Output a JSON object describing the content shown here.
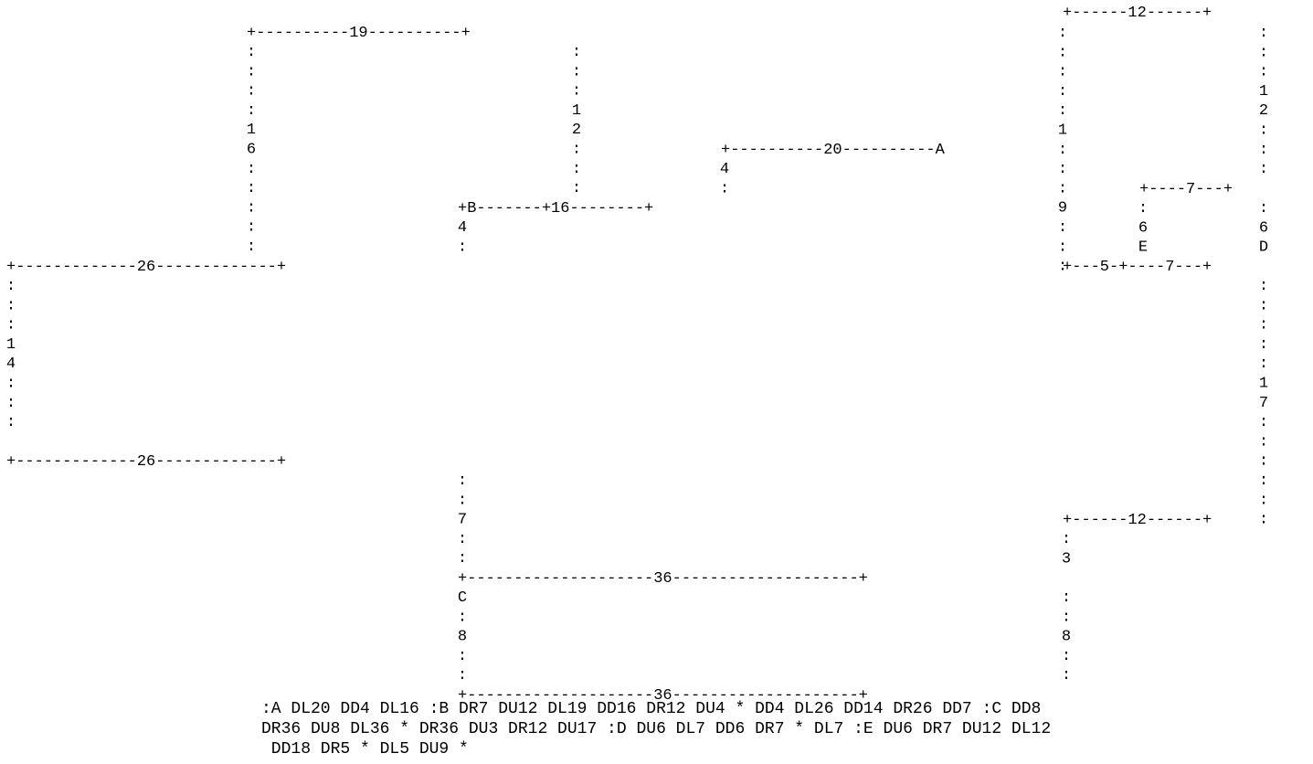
{
  "diagram": {
    "lines": [
      "                                                                                                                                               +------12------+",
      "                           +----------19----------+                                                                                            :              :",
      "                           :                      :                                                                                            :              :",
      "                           :                      :                                                                                            :              :",
      "                           :                      :                                                                                            :              1",
      "                           :                      1                                                                                            :              2",
      "                           1                      2                                                                                            1              :",
      "                           6                      :                   +----------20----------A:                                                :              :",
      "                           :                      :                   4                                                                        :              :",
      "                           :                      :                   :                                                                        :     +----7---+",
      "                           :                     +B-------+16--------+                                                                        9     :        :",
      "                           :                     4                                                                                            :     6        6",
      "                           :                     :                                                                                            :     E        D",
      "+-------------26-------------+                                                                                                                  +---5-+----7---+",
      ":                                                                                                                                                             :",
      ":                                                                                                                                                             :",
      ":                                                                                                                                                             :",
      "1                                                                                                                                                             :",
      "4                                                                                                                                                             1",
      ":                                                                                                                                                             7",
      ":                                                                                                                                                             :",
      ":                                                                                                                                                             :",
      "+-------------26-------------+                                                                                                                                :",
      "                           :                                                                                                                                  :",
      "                           :                                                                                                                                  :",
      "                           7                                                                                                          +------12------+",
      "                           :                                                                                                          :",
      "                           :                                                                                                          3",
      "                          +--------------------36--------------------+",
      "                          C                                          :",
      "                          :                                          :",
      "                          8                                          8",
      "                          :                                          :",
      "                          :                                          :",
      "                          +--------------------36--------------------+"
    ]
  },
  "instructions": {
    "lines": [
      ":A DL20 DD4 DL16 :B DR7 DU12 DL19 DD16 DR12 DU4 * DD4 DL26 DD14 DR26 DD7 :C DD8",
      "DR36 DU8 DL36 * DR36 DU3 DR12 DU17 :D DU6 DL7 DD6 DR7 * DL7 :E DU6 DR7 DU12 DL12",
      " DD18 DR5 * DL5 DU9 *"
    ]
  }
}
